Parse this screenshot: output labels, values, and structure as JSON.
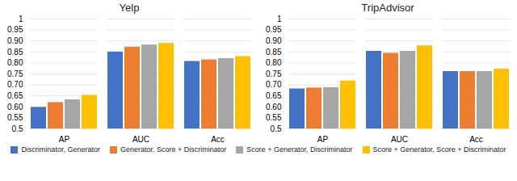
{
  "chart_data": [
    {
      "type": "bar",
      "title": "Yelp",
      "categories": [
        "AP",
        "AUC",
        "Acc"
      ],
      "series": [
        {
          "name": "Discriminator, Generator",
          "color": "#4472C4",
          "values": [
            0.598,
            0.85,
            0.807
          ]
        },
        {
          "name": "Generator, Score + Discriminator",
          "color": "#ED7D31",
          "values": [
            0.62,
            0.872,
            0.814
          ]
        },
        {
          "name": "Score + Generator, Discriminator",
          "color": "#A5A5A5",
          "values": [
            0.632,
            0.882,
            0.82
          ]
        },
        {
          "name": "Score + Generator, Score + Discriminator",
          "color": "#FFC000",
          "values": [
            0.653,
            0.889,
            0.829
          ]
        }
      ],
      "ylim": [
        0.5,
        1.0
      ],
      "yticks": [
        0.5,
        0.55,
        {
          "value": 0.6,
          "label": "0.60"
        },
        0.65,
        {
          "value": 0.7,
          "label": "0.70"
        },
        0.75,
        {
          "value": 0.8,
          "label": "0.80"
        },
        0.85,
        {
          "value": 0.9,
          "label": "0.90"
        },
        0.95,
        1
      ],
      "grid": true,
      "legend": "bottom"
    },
    {
      "type": "bar",
      "title": "TripAdvisor",
      "categories": [
        "AP",
        "AUC",
        "Acc"
      ],
      "series": [
        {
          "name": "Discriminator, Generator",
          "color": "#4472C4",
          "values": [
            0.682,
            0.853,
            0.761
          ]
        },
        {
          "name": "Generator, Score + Discriminator",
          "color": "#ED7D31",
          "values": [
            0.686,
            0.844,
            0.761
          ]
        },
        {
          "name": "Score + Generator, Discriminator",
          "color": "#A5A5A5",
          "values": [
            0.688,
            0.853,
            0.761
          ]
        },
        {
          "name": "Score + Generator, Score + Discriminator",
          "color": "#FFC000",
          "values": [
            0.718,
            0.878,
            0.772
          ]
        }
      ],
      "ylim": [
        0.5,
        1.0
      ],
      "yticks": [
        0.5,
        0.55,
        {
          "value": 0.6,
          "label": "0.60"
        },
        0.65,
        {
          "value": 0.7,
          "label": "0.70"
        },
        0.75,
        {
          "value": 0.8,
          "label": "0.80"
        },
        0.85,
        {
          "value": 0.9,
          "label": "0.90"
        },
        0.95,
        1
      ],
      "grid": true,
      "legend": "bottom"
    }
  ]
}
